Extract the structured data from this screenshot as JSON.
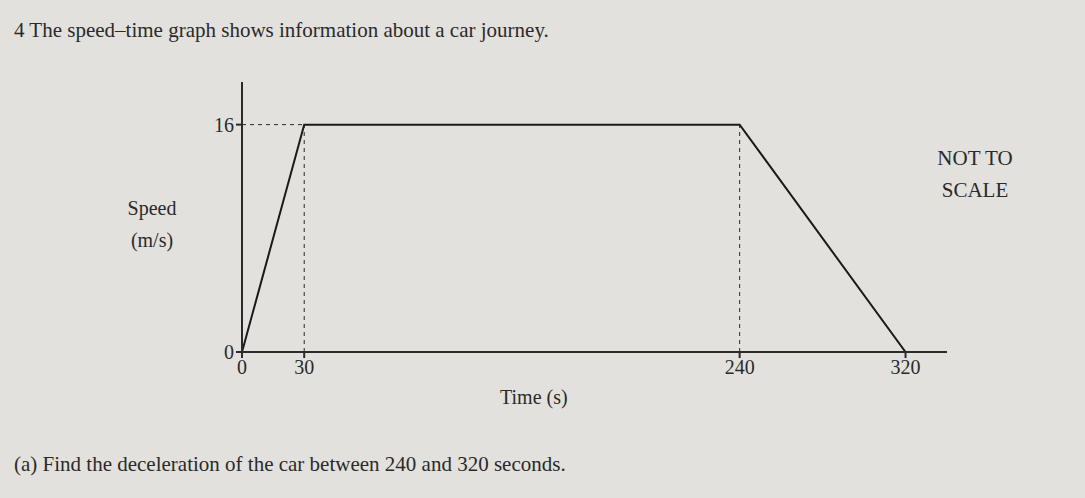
{
  "chart_data": {
    "type": "line",
    "title": "4 The speed–time graph shows information about a car journey.",
    "x_label": "Time (s)",
    "y_label": "Speed (m/s)",
    "note": "NOT TO SCALE",
    "question": "(a) Find the deceleration of the car between 240 and 320 seconds.",
    "x": [
      0,
      30,
      240,
      320
    ],
    "values": [
      0,
      16,
      16,
      0
    ],
    "xlim": [
      0,
      340
    ],
    "ylim": [
      0,
      19
    ],
    "xticks": [
      0,
      30,
      240,
      320
    ],
    "yticks": [
      0,
      16
    ],
    "color": "#1a1a1a",
    "line_style": "solid",
    "grid": false
  }
}
